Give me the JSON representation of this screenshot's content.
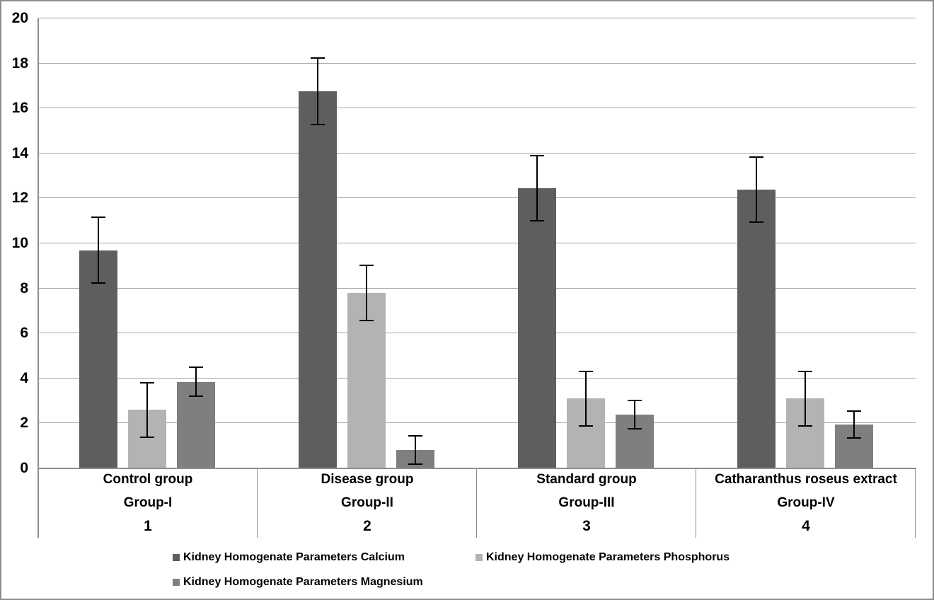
{
  "chart_data": {
    "type": "bar",
    "title": "",
    "xlabel": "",
    "ylabel": "",
    "ylim": [
      0,
      20
    ],
    "yticks": [
      0,
      2,
      4,
      6,
      8,
      10,
      12,
      14,
      16,
      18,
      20
    ],
    "grid": true,
    "error_bars": true,
    "legend_position": "bottom",
    "categories": [
      {
        "label": "Control group",
        "group": "Group-I",
        "index": "1"
      },
      {
        "label": "Disease group",
        "group": "Group-II",
        "index": "2"
      },
      {
        "label": "Standard group",
        "group": "Group-III",
        "index": "3"
      },
      {
        "label": "Catharanthus roseus extract",
        "group": "Group-IV",
        "index": "4"
      }
    ],
    "series": [
      {
        "name": "Kidney Homogenate Parameters Calcium",
        "color": "#5E5E5E",
        "values": [
          9.7,
          16.75,
          12.45,
          12.4
        ],
        "errors": [
          1.45,
          1.48,
          1.45,
          1.45
        ]
      },
      {
        "name": "Kidney Homogenate Parameters Phosphorus",
        "color": "#B3B3B3",
        "values": [
          2.6,
          7.8,
          3.1,
          3.1
        ],
        "errors": [
          1.22,
          1.22,
          1.2,
          1.2
        ]
      },
      {
        "name": "Kidney Homogenate Parameters Magnesium",
        "color": "#7F7F7F",
        "values": [
          3.85,
          0.82,
          2.4,
          1.95
        ],
        "errors": [
          0.65,
          0.64,
          0.63,
          0.6
        ]
      }
    ]
  },
  "colors": {
    "gridline": "#A6A6A6",
    "axis": "#8E8E8E",
    "frame_border": "#8C8C8C",
    "error_bar": "#000000",
    "background": "#FFFFFF",
    "text": "#000000"
  }
}
